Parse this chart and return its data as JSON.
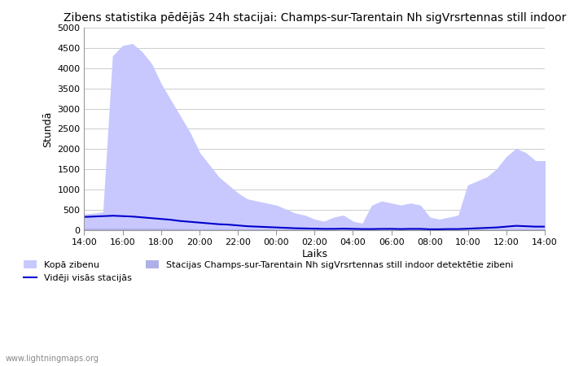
{
  "title": "Zibens statistika pēdējās 24h stacijai: Champs-sur-Tarentain Nh sigVrsrtennas still indoor",
  "ylabel": "Stundā",
  "xlabel": "Laiks",
  "watermark": "www.lightningmaps.org",
  "legend_total": "Kopā zibenu",
  "legend_avg": "Vidēji visās stacijās",
  "legend_station": "Stacijas Champs-sur-Tarentain Nh sigVrsrtennas still indoor detektētie zibeni",
  "ylim": [
    0,
    5000
  ],
  "yticks": [
    0,
    500,
    1000,
    1500,
    2000,
    2500,
    3000,
    3500,
    4000,
    4500,
    5000
  ],
  "xtick_labels": [
    "14:00",
    "16:00",
    "18:00",
    "20:00",
    "22:00",
    "00:00",
    "02:00",
    "04:00",
    "06:00",
    "08:00",
    "10:00",
    "12:00",
    "14:00"
  ],
  "fill_color": "#c8c8ff",
  "fill_color2": "#b8b8ee",
  "line_color": "#0000cc",
  "station_fill_color": "#b0b0e8",
  "total_x": [
    0,
    1,
    2,
    3,
    4,
    5,
    6,
    7,
    8,
    9,
    10,
    11,
    12,
    13,
    14,
    15,
    16,
    17,
    18,
    19,
    20,
    21,
    22,
    23,
    24,
    25,
    26,
    27,
    28,
    29,
    30,
    31,
    32,
    33,
    34,
    35,
    36,
    37,
    38,
    39,
    40,
    41,
    42,
    43,
    44,
    45,
    46,
    47,
    48
  ],
  "total_y": [
    380,
    400,
    430,
    4300,
    4550,
    4600,
    4400,
    4100,
    3600,
    3200,
    2800,
    2400,
    1900,
    1600,
    1300,
    1100,
    900,
    750,
    700,
    650,
    600,
    500,
    400,
    350,
    250,
    200,
    300,
    350,
    200,
    150,
    600,
    700,
    650,
    600,
    650,
    600,
    300,
    250,
    300,
    350,
    1100,
    1200,
    1300,
    1500,
    1800,
    2000,
    1900,
    1700,
    1700
  ],
  "avg_x": [
    0,
    1,
    2,
    3,
    4,
    5,
    6,
    7,
    8,
    9,
    10,
    11,
    12,
    13,
    14,
    15,
    16,
    17,
    18,
    19,
    20,
    21,
    22,
    23,
    24,
    25,
    26,
    27,
    28,
    29,
    30,
    31,
    32,
    33,
    34,
    35,
    36,
    37,
    38,
    39,
    40,
    41,
    42,
    43,
    44,
    45,
    46,
    47,
    48
  ],
  "avg_y": [
    320,
    330,
    340,
    350,
    340,
    330,
    310,
    290,
    270,
    250,
    220,
    200,
    180,
    160,
    140,
    130,
    110,
    90,
    80,
    70,
    60,
    50,
    40,
    35,
    30,
    25,
    25,
    30,
    25,
    20,
    20,
    25,
    25,
    20,
    25,
    25,
    15,
    15,
    20,
    20,
    30,
    40,
    50,
    60,
    80,
    100,
    90,
    80,
    80
  ],
  "station_y": [
    30,
    30,
    30,
    30,
    30,
    30,
    30,
    30,
    25,
    20,
    20,
    15,
    10,
    10,
    10,
    10,
    10,
    10,
    10,
    10,
    10,
    10,
    10,
    10,
    10,
    10,
    10,
    10,
    10,
    10,
    10,
    10,
    10,
    10,
    10,
    10,
    10,
    10,
    10,
    10,
    10,
    10,
    10,
    10,
    10,
    10,
    10,
    10,
    10
  ]
}
